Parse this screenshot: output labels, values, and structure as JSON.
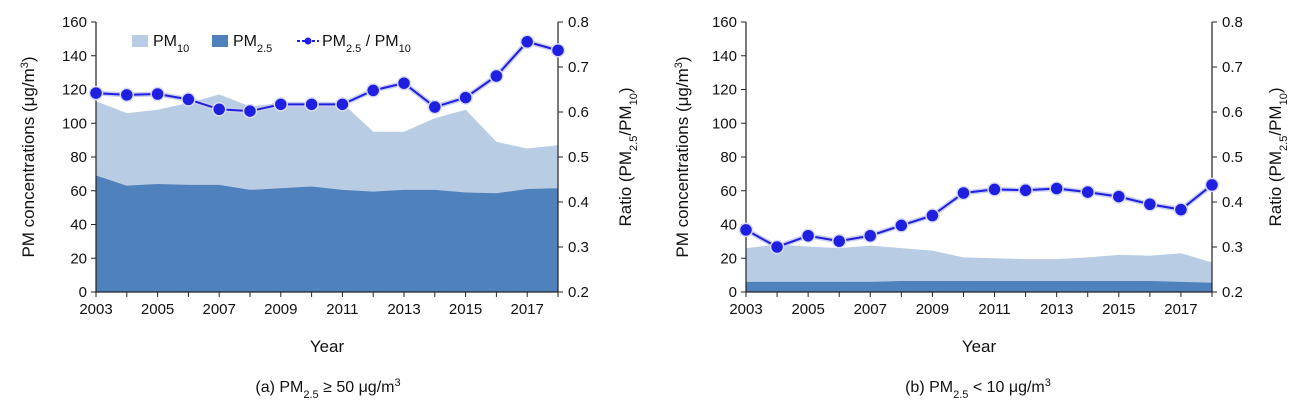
{
  "chart_data": [
    {
      "type": "area",
      "caption": {
        "prefix": "(a) PM",
        "sub": "2.5",
        "op": "≥",
        "value": "50 μg/m",
        "sup": "3"
      },
      "x": [
        2003,
        2004,
        2005,
        2006,
        2007,
        2008,
        2009,
        2010,
        2011,
        2012,
        2013,
        2014,
        2015,
        2016,
        2017,
        2018
      ],
      "x_ticks": [
        "2003",
        "2005",
        "2007",
        "2009",
        "2011",
        "2013",
        "2015",
        "2017"
      ],
      "xlabel": "Year",
      "ylabel": {
        "main": "PM concentrations (μg/m",
        "sup": "3",
        "end": ")"
      },
      "ylim": [
        0,
        160
      ],
      "y_ticks": [
        "0",
        "20",
        "40",
        "60",
        "80",
        "100",
        "120",
        "140",
        "160"
      ],
      "y2label": {
        "main": "Ratio (PM",
        "sub1": "2.5",
        "mid": "/PM",
        "sub2": "10",
        "end": ")"
      },
      "y2lim": [
        0.2,
        0.8
      ],
      "y2_ticks": [
        "0.2",
        "0.3",
        "0.4",
        "0.5",
        "0.6",
        "0.7",
        "0.8"
      ],
      "legend": {
        "position": "top-left",
        "pm10": {
          "main": "PM",
          "sub": "10"
        },
        "pm25": {
          "main": "PM",
          "sub": "2.5"
        },
        "ratio": {
          "main": "PM",
          "sub1": "2.5",
          "mid": " / PM",
          "sub2": "10"
        }
      },
      "series": [
        {
          "name": "PM10",
          "axis": "left",
          "style": "area",
          "color": "#b8cce4",
          "values": [
            113,
            106,
            108,
            112,
            117,
            110,
            112,
            112,
            112,
            95,
            95,
            103,
            108,
            89,
            85,
            87
          ]
        },
        {
          "name": "PM2.5",
          "axis": "left",
          "style": "area",
          "color": "#4f81bd",
          "values": [
            69,
            63,
            64,
            63.5,
            63.5,
            60.5,
            61.5,
            62.5,
            60.5,
            59.5,
            60.5,
            60.5,
            59,
            58.5,
            61,
            61.5
          ]
        },
        {
          "name": "PM2.5/PM10",
          "axis": "right",
          "style": "line-marker",
          "color": "#1f1fe0",
          "values": [
            0.642,
            0.638,
            0.64,
            0.628,
            0.606,
            0.602,
            0.617,
            0.617,
            0.617,
            0.648,
            0.664,
            0.611,
            0.632,
            0.68,
            0.756,
            0.737
          ]
        }
      ]
    },
    {
      "type": "area",
      "caption": {
        "prefix": "(b) PM",
        "sub": "2.5",
        "op": "<",
        "value": "10 μg/m",
        "sup": "3"
      },
      "x": [
        2003,
        2004,
        2005,
        2006,
        2007,
        2008,
        2009,
        2010,
        2011,
        2012,
        2013,
        2014,
        2015,
        2016,
        2017,
        2018
      ],
      "x_ticks": [
        "2003",
        "2005",
        "2007",
        "2009",
        "2011",
        "2013",
        "2015",
        "2017"
      ],
      "xlabel": "Year",
      "ylabel": {
        "main": "PM concentrations (μg/m",
        "sup": "3",
        "end": ")"
      },
      "ylim": [
        0,
        160
      ],
      "y_ticks": [
        "0",
        "20",
        "40",
        "60",
        "80",
        "100",
        "120",
        "140",
        "160"
      ],
      "y2label": {
        "main": "Ratio (PM",
        "sub1": "2.5",
        "mid": "/PM",
        "sub2": "10",
        "end": ")"
      },
      "y2lim": [
        0.2,
        0.8
      ],
      "y2_ticks": [
        "0.2",
        "0.3",
        "0.4",
        "0.5",
        "0.6",
        "0.7",
        "0.8"
      ],
      "series": [
        {
          "name": "PM10",
          "axis": "left",
          "style": "area",
          "color": "#b8cce4",
          "values": [
            26,
            28,
            27,
            26,
            27.5,
            26,
            24.5,
            20.5,
            20,
            19.5,
            19.5,
            20.5,
            22,
            21.5,
            23,
            17.5
          ]
        },
        {
          "name": "PM2.5",
          "axis": "left",
          "style": "area",
          "color": "#4f81bd",
          "values": [
            6,
            6,
            6,
            6,
            6,
            6.5,
            6.5,
            6.5,
            6.5,
            6.5,
            6.5,
            6.5,
            6.5,
            6.5,
            6,
            5.5
          ]
        },
        {
          "name": "PM2.5/PM10",
          "axis": "right",
          "style": "line-marker",
          "color": "#1f1fe0",
          "values": [
            0.338,
            0.3,
            0.325,
            0.313,
            0.325,
            0.348,
            0.37,
            0.42,
            0.428,
            0.426,
            0.43,
            0.422,
            0.412,
            0.395,
            0.383,
            0.438
          ]
        }
      ]
    }
  ]
}
